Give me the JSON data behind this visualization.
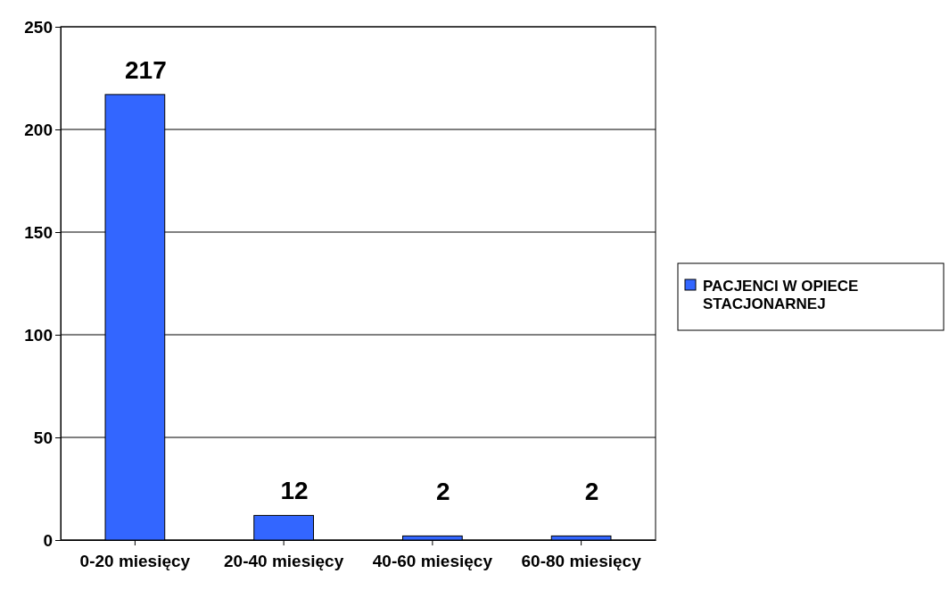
{
  "chart_data": {
    "type": "bar",
    "categories": [
      "0-20 miesięcy",
      "20-40 miesięcy",
      "40-60 miesięcy",
      "60-80 miesięcy"
    ],
    "series": [
      {
        "name": "PACJENCI W OPIECE STACJONARNEJ",
        "color": "#3366ff",
        "values": [
          217,
          12,
          2,
          2
        ]
      }
    ],
    "ylim": [
      0,
      250
    ],
    "yticks": [
      0,
      50,
      100,
      150,
      200,
      250
    ],
    "grid": "y",
    "legend": "right",
    "data_labels": true
  }
}
